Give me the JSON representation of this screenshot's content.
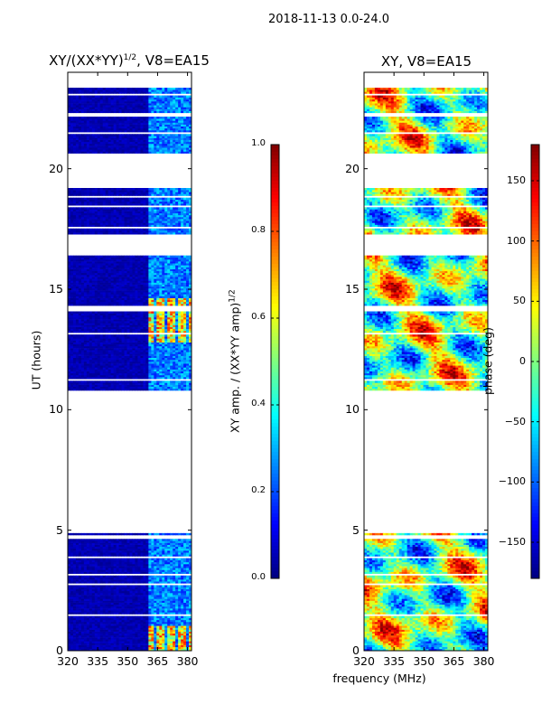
{
  "figure": {
    "suptitle": "2018-11-13 0.0-24.0",
    "shared_xlabel": "frequency (MHz)"
  },
  "colors": {
    "jet": [
      "#00007f",
      "#0000ff",
      "#007fff",
      "#00ffff",
      "#7fff7f",
      "#ffff00",
      "#ff7f00",
      "#ff0000",
      "#7f0000"
    ],
    "background": "#ffffff",
    "axis": "#000000"
  },
  "panel_amp": {
    "title_prefix": "XY/(XX*YY)",
    "title_exp": "1/2",
    "title_suffix": ", V8=EA15",
    "ylabel": "UT (hours)",
    "colorbar_label_prefix": "XY amp. / (XX*YY amp)",
    "colorbar_label_exp": "1/2"
  },
  "panel_phase": {
    "title": "XY, V8=EA15",
    "colorbar_label": "phase (deg)"
  },
  "chart_data": [
    {
      "type": "heatmap",
      "title": "XY/(XX*YY)^1/2, V8=EA15",
      "xlabel": "frequency (MHz)",
      "ylabel": "UT (hours)",
      "xlim": [
        320,
        382
      ],
      "ylim": [
        0,
        24
      ],
      "xticks": [
        320,
        335,
        350,
        365,
        380
      ],
      "yticks": [
        0,
        5,
        10,
        15,
        20
      ],
      "colorbar": {
        "label": "XY amp. / (XX*YY amp)^1/2",
        "range": [
          0.0,
          1.0
        ],
        "ticks": [
          "0.0",
          "0.2",
          "0.4",
          "0.6",
          "0.8",
          "1.0"
        ],
        "colormap": "jet"
      },
      "data_time_ranges_hours": [
        [
          0,
          4.9
        ],
        [
          10.8,
          16.4
        ],
        [
          17.2,
          19.2
        ],
        [
          20.6,
          23.4
        ]
      ],
      "typical_amplitude": 0.05,
      "elevated_amplitude": {
        "freq_range_mhz": [
          360,
          382
        ],
        "time_ranges_hours": [
          [
            0.0,
            1.0
          ],
          [
            12.8,
            14.6
          ]
        ],
        "peak": 0.85
      }
    },
    {
      "type": "heatmap",
      "title": "XY, V8=EA15",
      "xlabel": "frequency (MHz)",
      "xlim": [
        320,
        382
      ],
      "ylim": [
        0,
        24
      ],
      "xticks": [
        320,
        335,
        350,
        365,
        380
      ],
      "yticks": [
        0,
        5,
        10,
        15,
        20
      ],
      "colorbar": {
        "label": "phase (deg)",
        "range": [
          -180,
          180
        ],
        "ticks": [
          "-150",
          "-100",
          "-50",
          "0",
          "50",
          "100",
          "150"
        ],
        "colormap": "jet"
      },
      "data_time_ranges_hours": [
        [
          0,
          4.9
        ],
        [
          10.8,
          16.4
        ],
        [
          17.2,
          19.2
        ],
        [
          20.6,
          23.4
        ]
      ],
      "phase_range_deg": [
        -180,
        180
      ]
    }
  ]
}
